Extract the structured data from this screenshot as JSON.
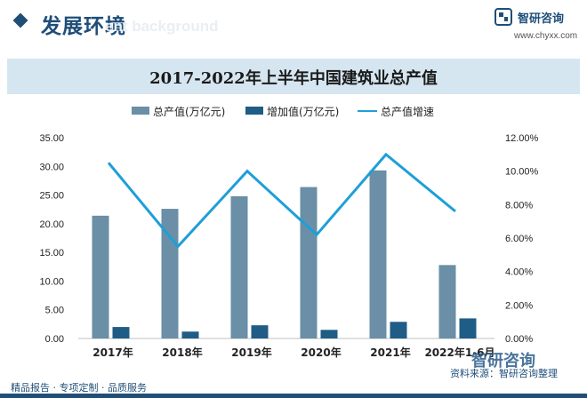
{
  "header": {
    "section_title": "发展环境",
    "ghost_text": "ent background",
    "brand_name": "智研咨询",
    "brand_url": "www.chyxx.com"
  },
  "colors": {
    "total_bar": "#6a8fa6",
    "added_bar": "#1f5c86",
    "growth_line": "#1e9fd8",
    "title_bar_bg": "#d6e6f1",
    "brand": "#1f4e79"
  },
  "footer": {
    "left_text": "精品报告 · 专项定制 · 品质服务",
    "source_text": "资料来源：智研咨询整理",
    "brand_mark": "智研咨询"
  },
  "chart_data": {
    "type": "bar",
    "title": "2017-2022年上半年中国建筑业总产值",
    "categories": [
      "2017年",
      "2018年",
      "2019年",
      "2020年",
      "2021年",
      "2022年1-6月"
    ],
    "series": [
      {
        "name": "总产值(万亿元)",
        "type": "bar",
        "axis": "left",
        "values": [
          21.4,
          22.6,
          24.8,
          26.4,
          29.3,
          12.8
        ]
      },
      {
        "name": "增加值(万亿元)",
        "type": "bar",
        "axis": "left",
        "values": [
          2.0,
          1.2,
          2.3,
          1.5,
          2.9,
          3.5
        ]
      },
      {
        "name": "总产值增速",
        "type": "line",
        "axis": "right",
        "values": [
          10.5,
          5.5,
          10.0,
          6.2,
          11.0,
          7.6
        ]
      }
    ],
    "y_left": {
      "ylim": [
        0,
        35
      ],
      "ticks": [
        "0.00",
        "5.00",
        "10.00",
        "15.00",
        "20.00",
        "25.00",
        "30.00",
        "35.00"
      ]
    },
    "y_right": {
      "ylim": [
        0,
        12
      ],
      "ticks": [
        "0.00%",
        "2.00%",
        "4.00%",
        "6.00%",
        "8.00%",
        "10.00%",
        "12.00%"
      ]
    },
    "grid": false,
    "legend_position": "top-center"
  }
}
